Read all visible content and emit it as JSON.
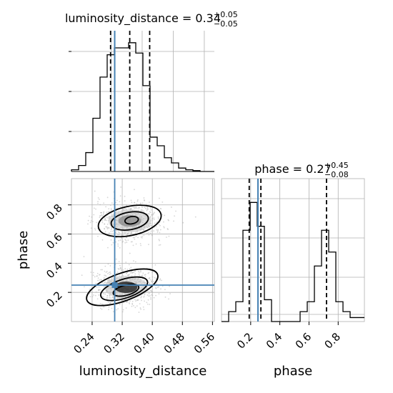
{
  "chart_data": [
    {
      "type": "histogram",
      "panel": "luminosity_distance marginal",
      "title": {
        "name": "luminosity_distance",
        "eq": " = 0.34",
        "plus": "+0.05",
        "minus": "−0.05"
      },
      "xlim": [
        0.185,
        0.565
      ],
      "bins_x0": 0.185,
      "bin_width": 0.019,
      "counts": [
        0.01,
        0.035,
        0.11,
        0.31,
        0.55,
        0.68,
        0.72,
        0.72,
        0.75,
        0.69,
        0.5,
        0.2,
        0.15,
        0.08,
        0.05,
        0.02,
        0.01,
        0.005,
        0.0,
        0.0
      ],
      "ymax": 0.82,
      "quantile_lines": [
        0.289,
        0.34,
        0.393
      ],
      "truth": 0.3,
      "grid": true
    },
    {
      "type": "histogram",
      "panel": "phase marginal",
      "title": {
        "name": "phase",
        "eq": " = 0.27",
        "plus": "+0.45",
        "minus": "−0.08"
      },
      "xlim": [
        0.0,
        0.98
      ],
      "bins_x0": 0.0,
      "bin_width": 0.049,
      "counts": [
        0.0,
        0.05,
        0.1,
        0.46,
        0.6,
        0.48,
        0.11,
        0.0,
        0.0,
        0.0,
        0.0,
        0.05,
        0.1,
        0.28,
        0.46,
        0.35,
        0.1,
        0.05,
        0.02,
        0.02
      ],
      "ymax": 0.72,
      "quantile_lines": [
        0.19,
        0.27,
        0.72
      ],
      "truth": 0.25,
      "grid": true
    },
    {
      "type": "scatter",
      "panel": "phase vs luminosity_distance",
      "xlabel": "luminosity_distance",
      "ylabel": "phase",
      "xlim": [
        0.185,
        0.565
      ],
      "ylim": [
        0.0,
        0.98
      ],
      "xticks": [
        "0.24",
        "0.32",
        "0.40",
        "0.48",
        "0.56"
      ],
      "xtick_values": [
        0.24,
        0.32,
        0.4,
        0.48,
        0.56
      ],
      "yticks": [
        "0.2",
        "0.4",
        "0.6",
        "0.8"
      ],
      "ytick_values": [
        0.2,
        0.4,
        0.6,
        0.8
      ],
      "modes": [
        {
          "cx": 0.34,
          "cy": 0.69,
          "sx": 0.045,
          "sy": 0.07
        },
        {
          "cx": 0.33,
          "cy": 0.235,
          "sx": 0.04,
          "sy": 0.06
        }
      ],
      "truth": {
        "x": 0.3,
        "y": 0.25
      },
      "contours": [
        {
          "cx": 0.345,
          "cy": 0.695,
          "rx": 0.018,
          "ry": 0.025,
          "rot": -10
        },
        {
          "cx": 0.34,
          "cy": 0.69,
          "rx": 0.05,
          "ry": 0.06,
          "rot": -10
        },
        {
          "cx": 0.34,
          "cy": 0.69,
          "rx": 0.085,
          "ry": 0.1,
          "rot": -12
        },
        {
          "cx": 0.33,
          "cy": 0.215,
          "rx": 0.035,
          "ry": 0.035,
          "rot": -15
        },
        {
          "cx": 0.325,
          "cy": 0.225,
          "rx": 0.065,
          "ry": 0.065,
          "rot": -18
        },
        {
          "cx": 0.32,
          "cy": 0.235,
          "rx": 0.1,
          "ry": 0.095,
          "rot": -20
        }
      ],
      "grid": true
    },
    {
      "type": "axis",
      "panel": "phase x-axis",
      "xlabel": "phase",
      "xticks": [
        "0.2",
        "0.4",
        "0.6",
        "0.8"
      ],
      "xtick_values": [
        0.2,
        0.4,
        0.6,
        0.8
      ]
    }
  ],
  "colors": {
    "truth": "#4682b4",
    "line": "#000000",
    "grid": "#b0b0b0",
    "points": "#b4b4b4"
  }
}
